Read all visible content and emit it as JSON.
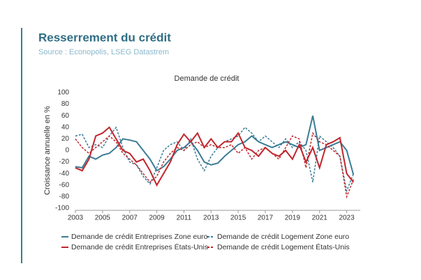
{
  "header": {
    "title": "Resserrement du crédit",
    "source": "Source : Econopolis, LSEG Datastrem"
  },
  "chart_data": {
    "type": "line",
    "title": "Demande de crédit",
    "ylabel": "Croissance annuelle en %",
    "x": [
      2003,
      2003.5,
      2004,
      2004.5,
      2005,
      2005.5,
      2006,
      2006.5,
      2007,
      2007.5,
      2008,
      2008.5,
      2009,
      2009.5,
      2010,
      2010.5,
      2011,
      2011.5,
      2012,
      2012.5,
      2013,
      2013.5,
      2014,
      2014.5,
      2015,
      2015.5,
      2016,
      2016.5,
      2017,
      2017.5,
      2018,
      2018.5,
      2019,
      2019.5,
      2020,
      2020.5,
      2021,
      2021.5,
      2022,
      2022.5,
      2023,
      2023.5
    ],
    "series": [
      {
        "name": "Demande de crédit Entreprises Zone euro",
        "color": "#3a7c96",
        "dashed": false,
        "values": [
          -28,
          -30,
          -10,
          -15,
          -8,
          -5,
          5,
          20,
          18,
          15,
          0,
          -15,
          -35,
          -28,
          -15,
          0,
          5,
          15,
          0,
          -20,
          -25,
          -22,
          -10,
          0,
          10,
          15,
          25,
          15,
          10,
          5,
          10,
          15,
          10,
          5,
          10,
          60,
          0,
          5,
          10,
          15,
          0,
          -42
        ]
      },
      {
        "name": "Demande de crédit Logement Zone euro",
        "color": "#3a7c96",
        "dashed": true,
        "values": [
          25,
          28,
          5,
          10,
          5,
          25,
          40,
          5,
          -20,
          -25,
          -45,
          -58,
          -30,
          0,
          10,
          15,
          0,
          20,
          -15,
          -35,
          -10,
          5,
          15,
          20,
          25,
          40,
          30,
          15,
          25,
          15,
          5,
          20,
          5,
          15,
          0,
          -55,
          25,
          15,
          5,
          -10,
          -70,
          -40
        ]
      },
      {
        "name": "Demande de crédit Entreprises États-Unis",
        "color": "#c0262d",
        "dashed": false,
        "values": [
          -30,
          -35,
          -15,
          25,
          30,
          40,
          20,
          0,
          -5,
          -20,
          -15,
          -35,
          -60,
          -40,
          -20,
          10,
          28,
          15,
          30,
          5,
          20,
          5,
          15,
          15,
          30,
          5,
          0,
          -10,
          5,
          -5,
          -10,
          0,
          -15,
          10,
          -20,
          5,
          -30,
          10,
          15,
          22,
          -40,
          -55
        ]
      },
      {
        "name": "Demande de crédit Logement États-Unis",
        "color": "#c0262d",
        "dashed": true,
        "values": [
          20,
          5,
          -5,
          5,
          15,
          25,
          15,
          -5,
          -15,
          -25,
          -40,
          -55,
          -45,
          -20,
          -5,
          5,
          0,
          10,
          15,
          5,
          10,
          5,
          5,
          10,
          -5,
          5,
          -15,
          0,
          5,
          -5,
          -15,
          5,
          25,
          20,
          -30,
          30,
          15,
          10,
          0,
          -10,
          -80,
          -50
        ]
      }
    ],
    "xlim": [
      2003,
      2024
    ],
    "xticks": [
      2003,
      2005,
      2007,
      2009,
      2011,
      2013,
      2015,
      2017,
      2019,
      2021,
      2023
    ],
    "ylim": [
      -100,
      100
    ],
    "yticks": [
      -100,
      -80,
      -60,
      -40,
      -20,
      0,
      20,
      40,
      60,
      80,
      100
    ],
    "grid": false
  }
}
